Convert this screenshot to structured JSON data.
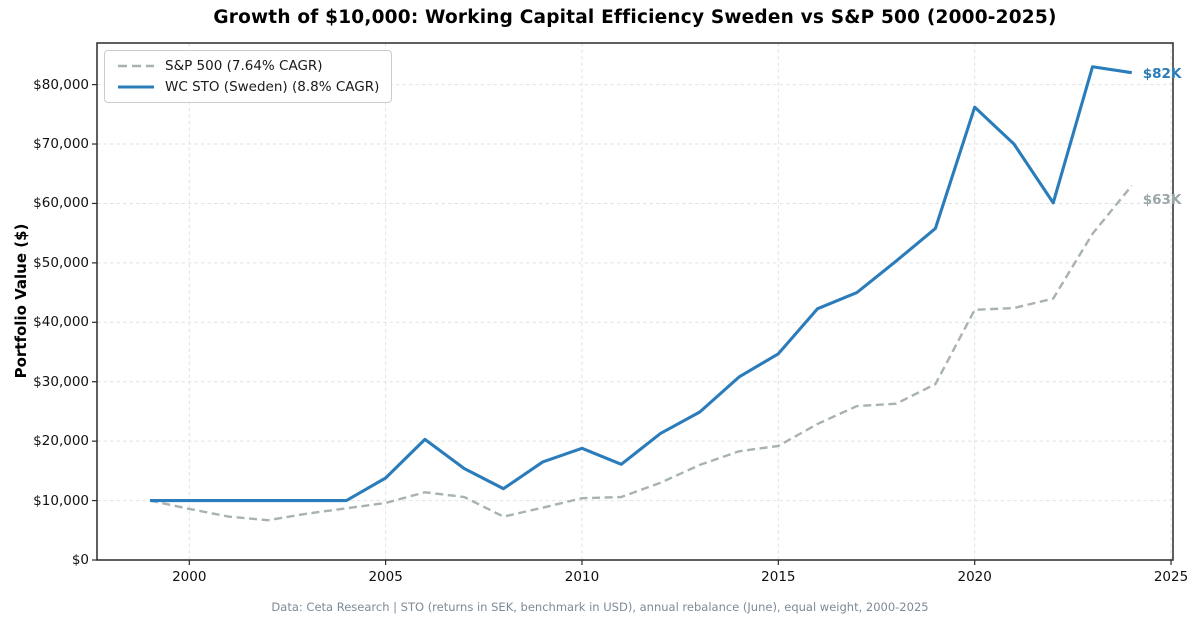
{
  "footer": "Data: Ceta Research | STO (returns in SEK, benchmark in USD), annual rebalance (June), equal weight, 2000-2025",
  "colors": {
    "wc_line": "#2b7cba",
    "sp_line": "#a8b2b2",
    "sp_end_label_text": "#9aa7a9",
    "grid": "#e2e2e2",
    "spine": "#2a2a2a",
    "tick_text": "#111111",
    "footer_text": "#7d8a96",
    "legend_border": "#cccccc"
  },
  "chart_data": {
    "type": "line",
    "title": "Growth of $10,000: Working Capital Efficiency Sweden vs S&P 500 (2000-2025)",
    "xlabel": "",
    "ylabel": "Portfolio Value ($)",
    "grid": true,
    "legend_position": "upper left",
    "xlim": [
      1997.65,
      2025.05
    ],
    "ylim": [
      0,
      87000
    ],
    "xticks": [
      2000,
      2005,
      2010,
      2015,
      2020,
      2025
    ],
    "yticks": [
      {
        "v": 0,
        "label": "$0"
      },
      {
        "v": 10000,
        "label": "$10,000"
      },
      {
        "v": 20000,
        "label": "$20,000"
      },
      {
        "v": 30000,
        "label": "$30,000"
      },
      {
        "v": 40000,
        "label": "$40,000"
      },
      {
        "v": 50000,
        "label": "$50,000"
      },
      {
        "v": 60000,
        "label": "$60,000"
      },
      {
        "v": 70000,
        "label": "$70,000"
      },
      {
        "v": 80000,
        "label": "$80,000"
      }
    ],
    "x": [
      1999,
      2000,
      2001,
      2002,
      2003,
      2004,
      2005,
      2006,
      2007,
      2008,
      2009,
      2010,
      2011,
      2012,
      2013,
      2014,
      2015,
      2016,
      2017,
      2018,
      2019,
      2020,
      2021,
      2022,
      2023,
      2024
    ],
    "series": [
      {
        "name": "sp500",
        "label": "S&P 500 (7.64% CAGR)",
        "style": "dashed",
        "color": "#a8b2b2",
        "end_label": "$63K",
        "end_label_color": "#9aa7a9",
        "values": [
          10000,
          8600,
          7300,
          6700,
          7800,
          8700,
          9600,
          11400,
          10600,
          7300,
          8800,
          10400,
          10600,
          13000,
          16000,
          18300,
          19200,
          22900,
          25900,
          26300,
          29600,
          42100,
          42400,
          44000,
          54900,
          63000
        ]
      },
      {
        "name": "wc_sto_sweden",
        "label": "WC STO (Sweden) (8.8% CAGR)",
        "style": "solid",
        "color": "#2b7cba",
        "end_label": "$82K",
        "end_label_color": "#2b7cba",
        "values": [
          10000,
          10000,
          10000,
          10000,
          10000,
          10000,
          13800,
          20300,
          15400,
          12000,
          16500,
          18800,
          16100,
          21300,
          24900,
          30800,
          34700,
          42300,
          45000,
          50300,
          55800,
          76200,
          70000,
          60100,
          83000,
          82000
        ]
      }
    ]
  }
}
